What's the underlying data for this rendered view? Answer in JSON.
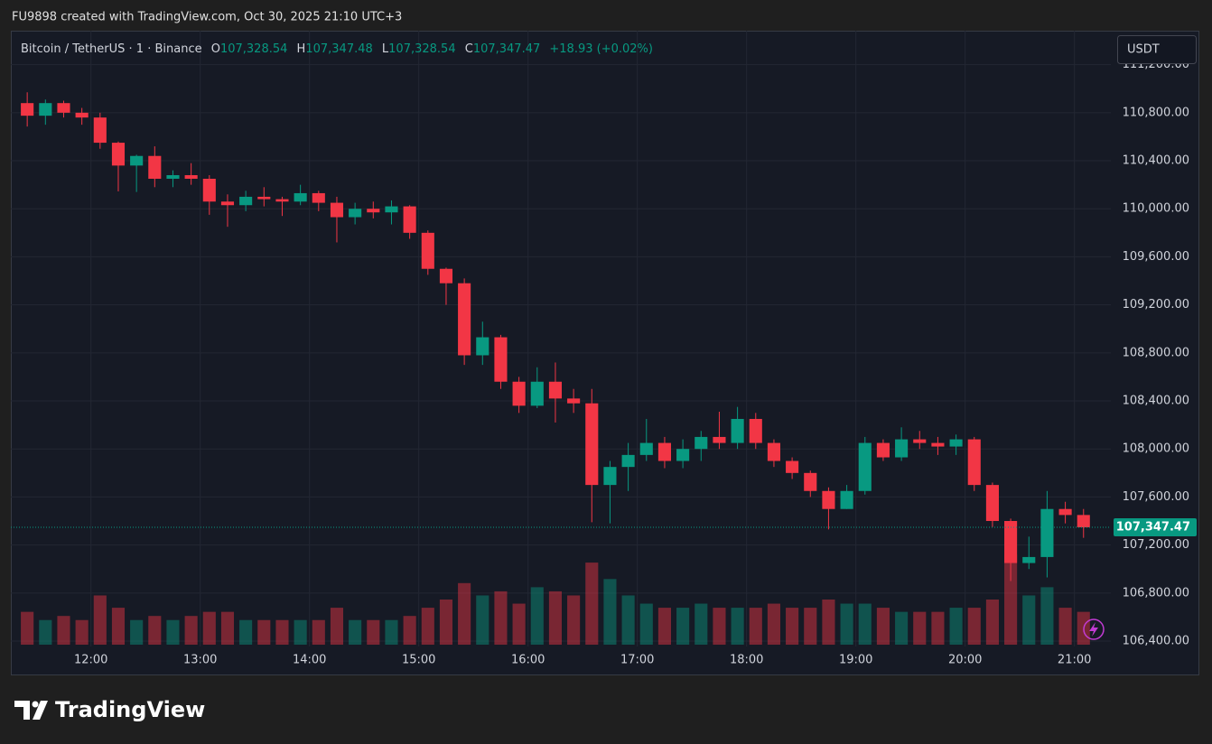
{
  "attribution": "FU9898 created with TradingView.com, Oct 30, 2025 21:10 UTC+3",
  "brand": "TradingView",
  "chart_data": {
    "type": "candlestick",
    "title": "Bitcoin / TetherUS · 1 · Binance",
    "legend": [
      {
        "label": "O",
        "value": "107,328.54"
      },
      {
        "label": "H",
        "value": "107,347.48"
      },
      {
        "label": "L",
        "value": "107,328.54"
      },
      {
        "label": "C",
        "value": "107,347.47"
      }
    ],
    "change": "+18.93 (+0.02%)",
    "currency": "USDT",
    "last_price": {
      "value": 107347.47,
      "label": "107,347.47"
    },
    "up_color": "#089981",
    "down_color": "#f23645",
    "grid": true,
    "x": [
      "11:20",
      "11:30",
      "11:40",
      "11:50",
      "12:00",
      "12:10",
      "12:20",
      "12:30",
      "12:40",
      "12:50",
      "13:00",
      "13:10",
      "13:20",
      "13:30",
      "13:40",
      "13:50",
      "14:00",
      "14:10",
      "14:20",
      "14:30",
      "14:40",
      "14:50",
      "15:00",
      "15:10",
      "15:20",
      "15:30",
      "15:40",
      "15:50",
      "16:00",
      "16:10",
      "16:20",
      "16:30",
      "16:40",
      "16:50",
      "17:00",
      "17:10",
      "17:20",
      "17:30",
      "17:40",
      "17:50",
      "18:00",
      "18:10",
      "18:20",
      "18:30",
      "18:40",
      "18:50",
      "19:00",
      "19:10",
      "19:20",
      "19:30",
      "19:40",
      "19:50",
      "20:00",
      "20:10",
      "20:20",
      "20:30",
      "20:40",
      "20:50",
      "21:00"
    ],
    "open": [
      110880,
      110775,
      110880,
      110800,
      110760,
      110550,
      110360,
      110440,
      110250,
      110280,
      110250,
      110060,
      110030,
      110100,
      110080,
      110060,
      110130,
      110050,
      109930,
      110000,
      109970,
      110020,
      109800,
      109500,
      109380,
      108780,
      108930,
      108560,
      108360,
      108560,
      108420,
      108380,
      107700,
      107850,
      107950,
      108050,
      107900,
      108000,
      108100,
      108050,
      108250,
      108050,
      107900,
      107800,
      107650,
      107500,
      107650,
      108050,
      107930,
      108080,
      108050,
      108020,
      108080,
      107700,
      107400,
      107050,
      107100,
      107500,
      107450
    ],
    "high": [
      110970,
      110910,
      110900,
      110840,
      110800,
      110560,
      110450,
      110520,
      110320,
      110380,
      110280,
      110120,
      110150,
      110180,
      110100,
      110200,
      110150,
      110100,
      110050,
      110060,
      110070,
      110030,
      109820,
      109510,
      109420,
      109060,
      108950,
      108600,
      108680,
      108720,
      108500,
      108500,
      107900,
      108050,
      108250,
      108100,
      108080,
      108150,
      108310,
      108350,
      108300,
      108080,
      107930,
      107820,
      107680,
      107700,
      108100,
      108080,
      108180,
      108150,
      108100,
      108120,
      108100,
      107720,
      107420,
      107270,
      107650,
      107560,
      107500
    ],
    "low": [
      110685,
      110700,
      110760,
      110700,
      110500,
      110145,
      110140,
      110180,
      110180,
      110200,
      109950,
      109850,
      109980,
      110020,
      109940,
      110030,
      109980,
      109720,
      109870,
      109920,
      109870,
      109750,
      109450,
      109200,
      108700,
      108700,
      108500,
      108300,
      108340,
      108220,
      108300,
      107390,
      107380,
      107650,
      107900,
      107840,
      107840,
      107900,
      108000,
      108000,
      108000,
      107850,
      107750,
      107600,
      107330,
      107500,
      107620,
      107900,
      107900,
      108000,
      107950,
      107950,
      107650,
      107350,
      106900,
      107000,
      106930,
      107380,
      107260
    ],
    "close": [
      110775,
      110880,
      110800,
      110760,
      110550,
      110360,
      110440,
      110250,
      110280,
      110250,
      110060,
      110030,
      110100,
      110080,
      110060,
      110130,
      110050,
      109930,
      110000,
      109970,
      110020,
      109800,
      109500,
      109380,
      108780,
      108930,
      108560,
      108360,
      108560,
      108420,
      108380,
      107700,
      107850,
      107950,
      108050,
      107900,
      108000,
      108100,
      108050,
      108250,
      108050,
      107900,
      107800,
      107650,
      107500,
      107650,
      108050,
      107930,
      108080,
      108050,
      108020,
      108080,
      107700,
      107400,
      107050,
      107100,
      107500,
      107450,
      107347.47
    ],
    "volume": [
      40,
      30,
      35,
      30,
      60,
      45,
      30,
      35,
      30,
      35,
      40,
      40,
      30,
      30,
      30,
      30,
      30,
      45,
      30,
      30,
      30,
      35,
      45,
      55,
      75,
      60,
      65,
      50,
      70,
      65,
      60,
      100,
      80,
      60,
      50,
      45,
      45,
      50,
      45,
      45,
      45,
      50,
      45,
      45,
      55,
      50,
      50,
      45,
      40,
      40,
      40,
      45,
      45,
      55,
      110,
      60,
      70,
      45,
      40
    ],
    "xlim": [
      "11:16",
      "21:20"
    ],
    "xticks": [
      "12:00",
      "13:00",
      "14:00",
      "15:00",
      "16:00",
      "17:00",
      "18:00",
      "19:00",
      "20:00",
      "21:00"
    ],
    "ylim": [
      106355,
      111483
    ],
    "yticks": [
      {
        "value": 111200,
        "label": "111,200.00"
      },
      {
        "value": 110800,
        "label": "110,800.00"
      },
      {
        "value": 110400,
        "label": "110,400.00"
      },
      {
        "value": 110000,
        "label": "110,000.00"
      },
      {
        "value": 109600,
        "label": "109,600.00"
      },
      {
        "value": 109200,
        "label": "109,200.00"
      },
      {
        "value": 108800,
        "label": "108,800.00"
      },
      {
        "value": 108400,
        "label": "108,400.00"
      },
      {
        "value": 108000,
        "label": "108,000.00"
      },
      {
        "value": 107600,
        "label": "107,600.00"
      },
      {
        "value": 107200,
        "label": "107,200.00"
      },
      {
        "value": 106800,
        "label": "106,800.00"
      },
      {
        "value": 106400,
        "label": "106,400.00"
      }
    ]
  }
}
